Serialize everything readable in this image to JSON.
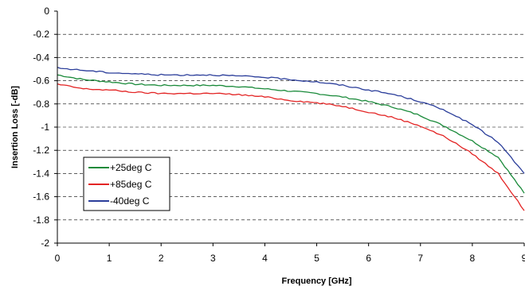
{
  "chart_data": {
    "type": "line",
    "title": "",
    "xlabel": "Frequency [GHz]",
    "ylabel": "Insertion Loss [-dB]",
    "xlim": [
      0,
      9
    ],
    "ylim": [
      -2,
      0
    ],
    "x_ticks": [
      "0",
      "1",
      "2",
      "3",
      "4",
      "5",
      "6",
      "7",
      "8",
      "9"
    ],
    "y_ticks": [
      "0",
      "-0.2",
      "-0.4",
      "-0.6",
      "-0.8",
      "-1",
      "-1.2",
      "-1.4",
      "-1.6",
      "-1.8",
      "-2"
    ],
    "grid": "horizontal dashed",
    "legend_position": "lower-left",
    "x": [
      0,
      0.5,
      1,
      1.5,
      2,
      2.5,
      3,
      3.5,
      4,
      4.5,
      5,
      5.5,
      6,
      6.5,
      7,
      7.5,
      8,
      8.5,
      9
    ],
    "series": [
      {
        "name": "+25deg C",
        "color": "#1a8a3a",
        "values": [
          -0.55,
          -0.59,
          -0.61,
          -0.63,
          -0.64,
          -0.64,
          -0.64,
          -0.65,
          -0.67,
          -0.69,
          -0.71,
          -0.74,
          -0.78,
          -0.83,
          -0.9,
          -1.0,
          -1.12,
          -1.26,
          -1.57
        ]
      },
      {
        "name": "+85deg C",
        "color": "#e32424",
        "values": [
          -0.63,
          -0.67,
          -0.68,
          -0.7,
          -0.71,
          -0.71,
          -0.71,
          -0.72,
          -0.74,
          -0.77,
          -0.79,
          -0.82,
          -0.87,
          -0.92,
          -0.99,
          -1.09,
          -1.23,
          -1.4,
          -1.72
        ]
      },
      {
        "name": "-40deg C",
        "color": "#2a3d9a",
        "values": [
          -0.49,
          -0.51,
          -0.53,
          -0.54,
          -0.55,
          -0.55,
          -0.55,
          -0.56,
          -0.57,
          -0.59,
          -0.61,
          -0.64,
          -0.68,
          -0.72,
          -0.78,
          -0.86,
          -0.98,
          -1.13,
          -1.4
        ]
      }
    ]
  }
}
